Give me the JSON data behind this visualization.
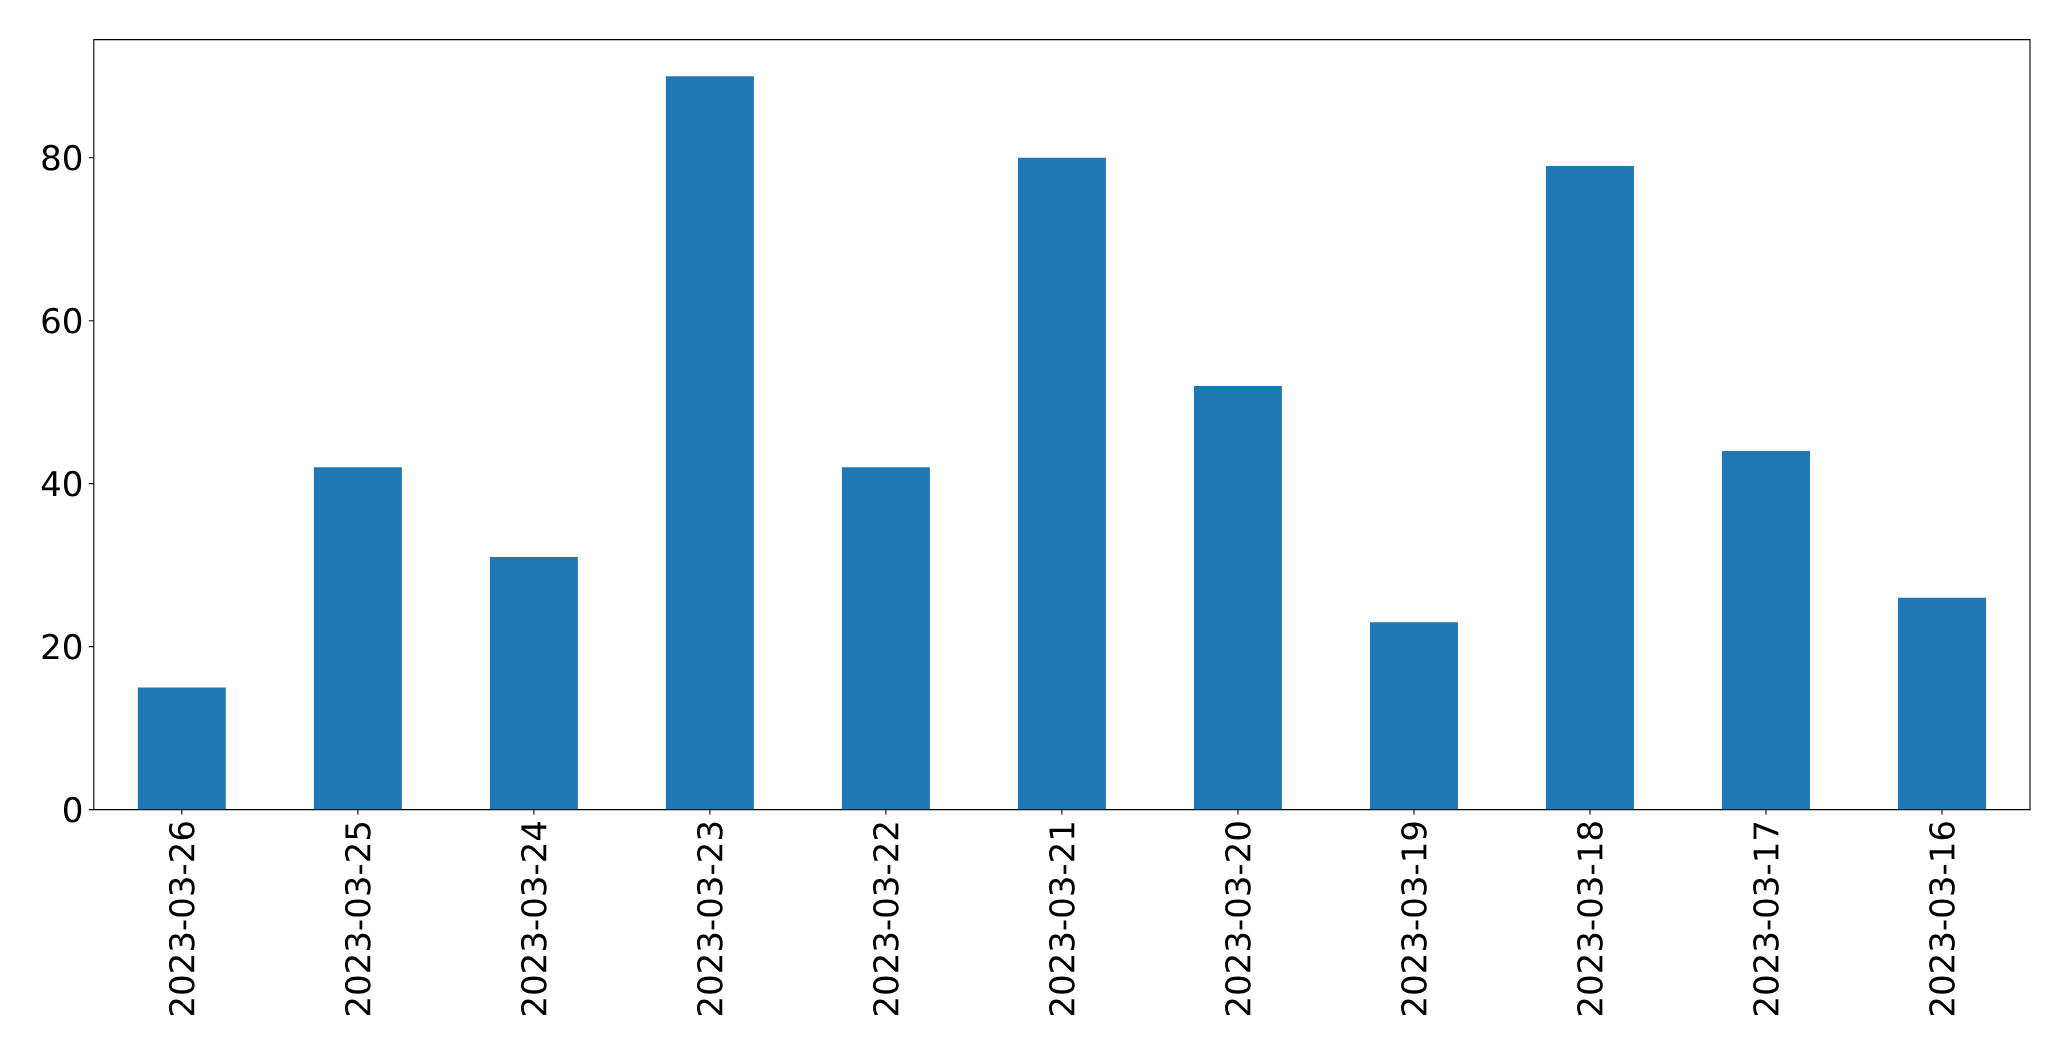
{
  "chart_data": {
    "type": "bar",
    "categories": [
      "2023-03-26",
      "2023-03-25",
      "2023-03-24",
      "2023-03-23",
      "2023-03-22",
      "2023-03-21",
      "2023-03-20",
      "2023-03-19",
      "2023-03-18",
      "2023-03-17",
      "2023-03-16"
    ],
    "values": [
      15,
      42,
      31,
      90,
      42,
      80,
      52,
      23,
      79,
      44,
      26
    ],
    "color": "#1f77b4",
    "ylim": [
      0,
      94.5
    ],
    "yticks": [
      0,
      20,
      40,
      60,
      80
    ]
  }
}
